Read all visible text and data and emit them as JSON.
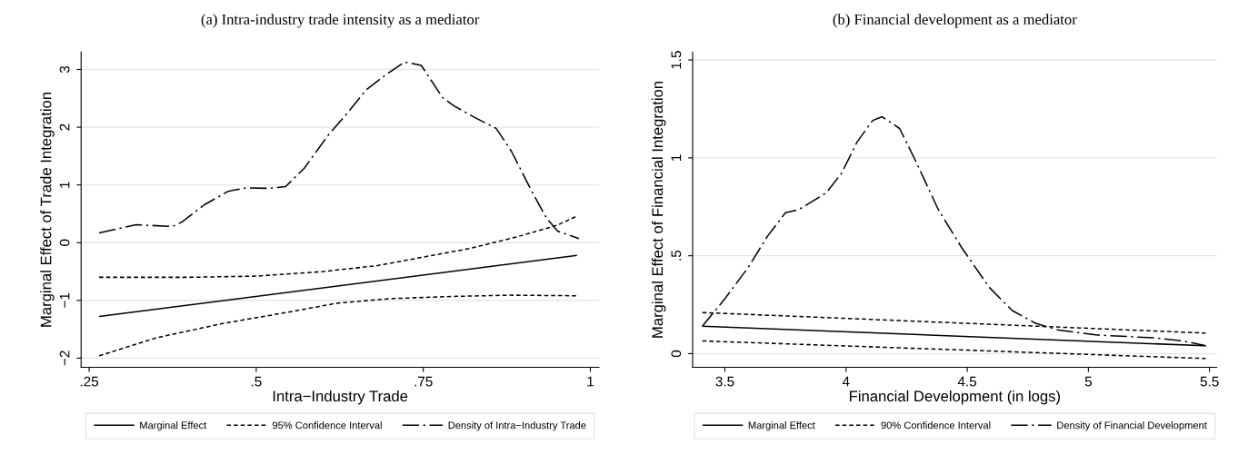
{
  "chart_data": [
    {
      "type": "line",
      "title": "(a) Intra-industry trade intensity as a mediator",
      "xlabel": "Intra−Industry Trade",
      "ylabel": "Marginal Effect of Trade Integration",
      "xlim": [
        0.238,
        1.013
      ],
      "xticks": [
        {
          "value": 0.25,
          "label": ".25"
        },
        {
          "value": 0.5,
          "label": ".5"
        },
        {
          "value": 0.75,
          "label": ".75"
        },
        1
      ],
      "ylim": [
        -2.16,
        3.3
      ],
      "yticks": [
        {
          "value": -2,
          "label": "−2"
        },
        {
          "value": -1,
          "label": "−1"
        },
        0,
        1,
        2,
        3
      ],
      "grid": "y",
      "legend": "bottom",
      "series": [
        {
          "name": "Marginal Effect",
          "color": "#000000",
          "line_style": "solid",
          "x": [
            0.265,
            0.98
          ],
          "values": [
            -1.28,
            -0.22
          ]
        },
        {
          "name": "95% Confidence Interval",
          "color": "#000000",
          "line_style": "dotted",
          "x": [
            0.265,
            0.4,
            0.5,
            0.6,
            0.68,
            0.75,
            0.82,
            0.89,
            0.95,
            0.98
          ],
          "values": [
            -0.6,
            -0.6,
            -0.58,
            -0.5,
            -0.4,
            -0.25,
            -0.1,
            0.1,
            0.3,
            0.46
          ]
        },
        {
          "color": "#000000",
          "line_style": "dotted",
          "x": [
            0.265,
            0.35,
            0.45,
            0.55,
            0.62,
            0.7,
            0.8,
            0.88,
            0.98
          ],
          "values": [
            -1.96,
            -1.65,
            -1.4,
            -1.2,
            -1.05,
            -0.97,
            -0.93,
            -0.91,
            -0.92
          ]
        },
        {
          "name": "Density of Intra−Industry Trade",
          "color": "#000000",
          "line_style": "dashed",
          "x": [
            0.265,
            0.32,
            0.375,
            0.389,
            0.423,
            0.458,
            0.486,
            0.52,
            0.544,
            0.572,
            0.607,
            0.636,
            0.664,
            0.693,
            0.722,
            0.747,
            0.779,
            0.796,
            0.825,
            0.859,
            0.882,
            0.911,
            0.934,
            0.951,
            0.983
          ],
          "values": [
            0.17,
            0.31,
            0.28,
            0.36,
            0.66,
            0.89,
            0.95,
            0.94,
            0.97,
            1.29,
            1.85,
            2.24,
            2.64,
            2.9,
            3.13,
            3.07,
            2.51,
            2.37,
            2.18,
            1.98,
            1.58,
            0.92,
            0.43,
            0.2,
            0.07
          ]
        }
      ]
    },
    {
      "type": "line",
      "title": "(b) Financial development as a mediator",
      "xlabel": "Financial Development (in logs)",
      "ylabel": "Marginal Effect of Financial Integration",
      "xlim": [
        3.367,
        5.53
      ],
      "xticks": [
        3.5,
        4,
        4.5,
        5,
        5.5
      ],
      "ylim": [
        -0.07,
        1.54
      ],
      "yticks": [
        0,
        {
          "value": 0.5,
          "label": ".5"
        },
        1,
        1.5
      ],
      "grid": "y",
      "legend": "bottom",
      "series": [
        {
          "name": "Marginal Effect",
          "color": "#000000",
          "line_style": "solid",
          "x": [
            3.407,
            5.484
          ],
          "values": [
            0.14,
            0.04
          ]
        },
        {
          "name": "90% Confidence Interval",
          "color": "#000000",
          "line_style": "dotted",
          "x": [
            3.407,
            5.484
          ],
          "values": [
            0.21,
            0.105
          ]
        },
        {
          "color": "#000000",
          "line_style": "dotted",
          "x": [
            3.407,
            5.484
          ],
          "values": [
            0.065,
            -0.025
          ]
        },
        {
          "name": "Density of Financial Development",
          "color": "#000000",
          "line_style": "dashed",
          "x": [
            3.407,
            3.5,
            3.596,
            3.676,
            3.75,
            3.804,
            3.917,
            3.981,
            4.045,
            4.109,
            4.149,
            4.221,
            4.285,
            4.381,
            4.478,
            4.59,
            4.686,
            4.782,
            4.878,
            5.038,
            5.279,
            5.391,
            5.484
          ],
          "values": [
            0.14,
            0.28,
            0.44,
            0.6,
            0.72,
            0.735,
            0.82,
            0.92,
            1.08,
            1.19,
            1.21,
            1.15,
            0.99,
            0.735,
            0.54,
            0.34,
            0.22,
            0.155,
            0.12,
            0.095,
            0.08,
            0.065,
            0.04
          ]
        }
      ]
    }
  ]
}
